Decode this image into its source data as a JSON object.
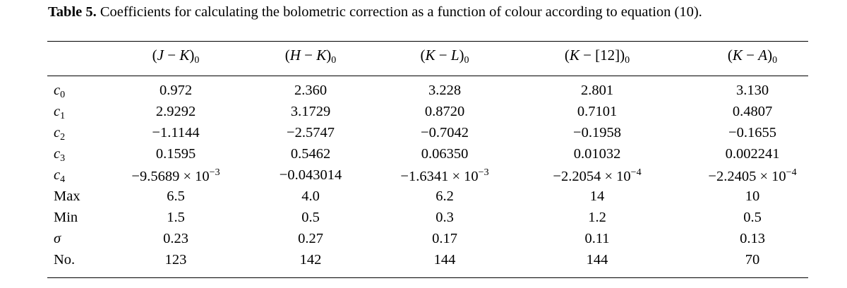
{
  "caption": {
    "label": "Table 5.",
    "text": "Coefficients for calculating the bolometric correction as a function of colour according to equation (10)."
  },
  "columns": [
    {
      "a": "J",
      "b": "K"
    },
    {
      "a": "H",
      "b": "K"
    },
    {
      "a": "K",
      "b": "L"
    },
    {
      "a": "K",
      "b": "[12]"
    },
    {
      "a": "K",
      "b": "A"
    }
  ],
  "column_sep": "−",
  "column_sub": "0",
  "rows": [
    {
      "label": "c",
      "label_sub": "0",
      "values": [
        {
          "m": "0.972"
        },
        {
          "m": "2.360"
        },
        {
          "m": "3.228"
        },
        {
          "m": "2.801"
        },
        {
          "m": "3.130"
        }
      ]
    },
    {
      "label": "c",
      "label_sub": "1",
      "values": [
        {
          "m": "2.9292"
        },
        {
          "m": "3.1729"
        },
        {
          "m": "0.8720"
        },
        {
          "m": "0.7101"
        },
        {
          "m": "0.4807"
        }
      ]
    },
    {
      "label": "c",
      "label_sub": "2",
      "values": [
        {
          "m": "−1.1144"
        },
        {
          "m": "−2.5747"
        },
        {
          "m": "−0.7042"
        },
        {
          "m": "−0.1958"
        },
        {
          "m": "−0.1655"
        }
      ]
    },
    {
      "label": "c",
      "label_sub": "3",
      "values": [
        {
          "m": "0.1595"
        },
        {
          "m": "0.5462"
        },
        {
          "m": "0.06350"
        },
        {
          "m": "0.01032"
        },
        {
          "m": "0.002241"
        }
      ]
    },
    {
      "label": "c",
      "label_sub": "4",
      "values": [
        {
          "m": "−9.5689 × 10",
          "e": "−3"
        },
        {
          "m": "−0.043014"
        },
        {
          "m": "−1.6341 × 10",
          "e": "−3"
        },
        {
          "m": "−2.2054 × 10",
          "e": "−4"
        },
        {
          "m": "−2.2405 × 10",
          "e": "−4"
        }
      ]
    },
    {
      "label": "Max",
      "values": [
        {
          "m": "6.5"
        },
        {
          "m": "4.0"
        },
        {
          "m": "6.2"
        },
        {
          "m": "14"
        },
        {
          "m": "10"
        }
      ]
    },
    {
      "label": "Min",
      "values": [
        {
          "m": "1.5"
        },
        {
          "m": "0.5"
        },
        {
          "m": "0.3"
        },
        {
          "m": "1.2"
        },
        {
          "m": "0.5"
        }
      ]
    },
    {
      "label": "σ",
      "values": [
        {
          "m": "0.23"
        },
        {
          "m": "0.27"
        },
        {
          "m": "0.17"
        },
        {
          "m": "0.11"
        },
        {
          "m": "0.13"
        }
      ]
    },
    {
      "label": "No.",
      "values": [
        {
          "m": "123"
        },
        {
          "m": "142"
        },
        {
          "m": "144"
        },
        {
          "m": "144"
        },
        {
          "m": "70"
        }
      ]
    }
  ]
}
